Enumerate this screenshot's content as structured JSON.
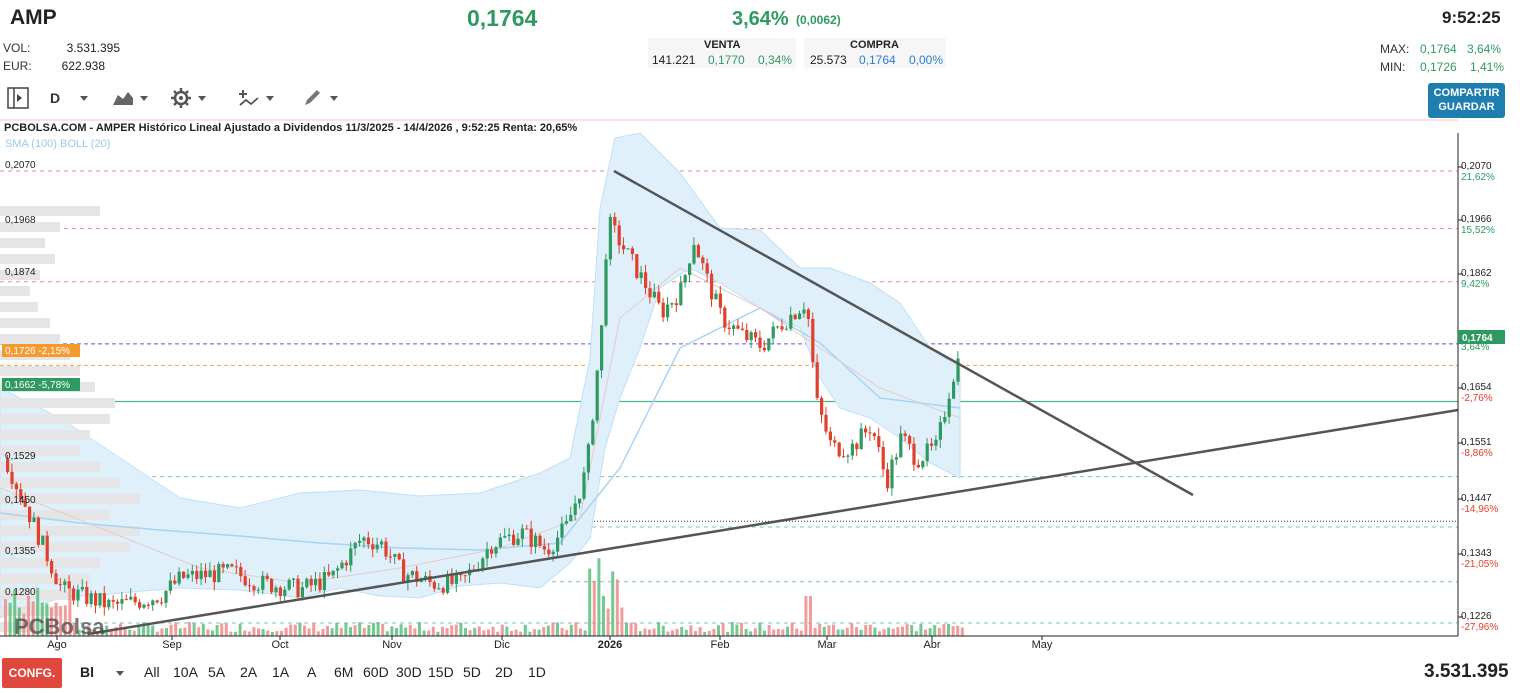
{
  "header": {
    "ticker": "AMP",
    "last_price": "0,1764",
    "change_pct": "3,64%",
    "change_abs": "(0,0062)",
    "time": "9:52:25"
  },
  "stats": {
    "vol_label": "VOL:",
    "vol_value": "3.531.395",
    "eur_label": "EUR:",
    "eur_value": "622.938",
    "max_label": "MAX:",
    "max_price": "0,1764",
    "max_pct": "3,64%",
    "min_label": "MIN:",
    "min_price": "0,1726",
    "min_pct": "1,41%"
  },
  "book": {
    "venta_label": "VENTA",
    "compra_label": "COMPRA",
    "venta_qty": "141.221",
    "venta_price": "0,1770",
    "venta_pct": "0,34%",
    "compra_qty": "25.573",
    "compra_price": "0,1764",
    "compra_pct": "0,00%"
  },
  "toolbar": {
    "period": "D",
    "share_label": "COMPARTIR",
    "save_label": "GUARDAR"
  },
  "chart_data": {
    "type": "candlestick",
    "title": "PCBOLSA.COM - AMPER Histórico Lineal Ajustado a Dividendos 11/3/2025 - 14/4/2026 , 9:52:25 Renta: 20,65%",
    "indicators": "SMA (100) BOLL (20)",
    "watermark": "PCBolsa",
    "x_ticks": [
      "Ago",
      "Sep",
      "Oct",
      "Nov",
      "Dic",
      "2026",
      "Feb",
      "Mar",
      "Abr",
      "May"
    ],
    "left_levels": [
      "0,2070",
      "0,1968",
      "0,1874",
      "0,1529",
      "0,1450",
      "0,1355",
      "0,1280"
    ],
    "right_levels": [
      {
        "price": "0,2070",
        "pct": "21,62%"
      },
      {
        "price": "0,1966",
        "pct": "15,52%"
      },
      {
        "price": "0,1862",
        "pct": "9,42%"
      },
      {
        "price": "0,1654",
        "pct": "-2,76%"
      },
      {
        "price": "0,1551",
        "pct": "-8,86%"
      },
      {
        "price": "0,1447",
        "pct": "-14,96%"
      },
      {
        "price": "0,1343",
        "pct": "-21,05%"
      },
      {
        "price": "0,1226",
        "pct": "-27,96%"
      }
    ],
    "markers": {
      "last": "0,1764",
      "last_pct": "3,64%",
      "prev_close": "0,1726 -2,15%",
      "support": "0,1662 -5,78%"
    },
    "ylim": [
      0.1226,
      0.21
    ]
  },
  "footer": {
    "config_label": "CONFG.",
    "chart_mode": "Bl",
    "ranges": [
      "All",
      "10A",
      "5A",
      "2A",
      "1A",
      "A",
      "6M",
      "60D",
      "30D",
      "15D",
      "5D",
      "2D",
      "1D"
    ],
    "total_volume": "3.531.395"
  },
  "colors": {
    "up": "#2e9a62",
    "down": "#e0402c",
    "accent": "#1f7eb0",
    "band": "#dff0fb"
  }
}
